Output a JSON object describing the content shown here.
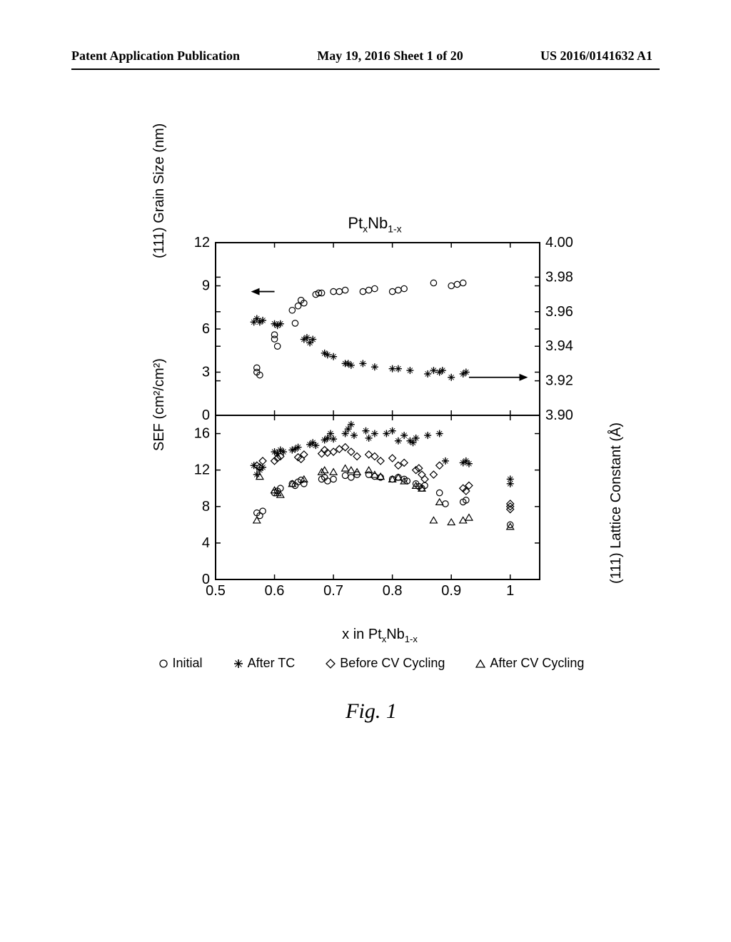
{
  "header": {
    "left": "Patent Application Publication",
    "center": "May 19, 2016  Sheet 1 of 20",
    "right": "US 2016/0141632 A1"
  },
  "figure": {
    "title_prefix": "Pt",
    "title_sub1": "x",
    "title_mid": "Nb",
    "title_sub2": "1-x",
    "caption": "Fig. 1",
    "xlabel_prefix": "x in Pt",
    "xlabel_sub1": "x",
    "xlabel_mid": "Nb",
    "xlabel_sub2": "1-x",
    "legend": {
      "initial": "Initial",
      "after_tc": "After TC",
      "before_cv": "Before CV Cycling",
      "after_cv": "After CV Cycling"
    },
    "colors": {
      "background": "#ffffff",
      "axis": "#000000",
      "marker_stroke": "#000000",
      "marker_fill": "none"
    },
    "top_panel": {
      "ylabel_left": "(111) Grain Size (nm)",
      "ylabel_right": "(111) Lattice Constant (Å)",
      "xlim": [
        0.5,
        1.05
      ],
      "ylim_left": [
        0,
        12
      ],
      "ytick_left": [
        0,
        3,
        6,
        9,
        12
      ],
      "ylim_right": [
        3.9,
        4.0
      ],
      "ytick_right": [
        "3.90",
        "3.92",
        "3.94",
        "3.96",
        "3.98",
        "4.00"
      ],
      "xtick": [
        0.5,
        0.6,
        0.7,
        0.8,
        0.9,
        1.0
      ],
      "grain_circles": [
        [
          0.57,
          3.0
        ],
        [
          0.57,
          3.3
        ],
        [
          0.575,
          2.8
        ],
        [
          0.6,
          5.3
        ],
        [
          0.6,
          5.6
        ],
        [
          0.605,
          4.8
        ],
        [
          0.63,
          7.3
        ],
        [
          0.635,
          6.4
        ],
        [
          0.64,
          7.6
        ],
        [
          0.645,
          8.0
        ],
        [
          0.65,
          7.8
        ],
        [
          0.67,
          8.4
        ],
        [
          0.675,
          8.5
        ],
        [
          0.68,
          8.5
        ],
        [
          0.7,
          8.6
        ],
        [
          0.71,
          8.6
        ],
        [
          0.72,
          8.7
        ],
        [
          0.75,
          8.6
        ],
        [
          0.76,
          8.7
        ],
        [
          0.77,
          8.8
        ],
        [
          0.8,
          8.6
        ],
        [
          0.81,
          8.7
        ],
        [
          0.82,
          8.8
        ],
        [
          0.87,
          9.2
        ],
        [
          0.9,
          9.0
        ],
        [
          0.91,
          9.1
        ],
        [
          0.92,
          9.2
        ]
      ],
      "lattice_plus": [
        [
          0.565,
          3.954
        ],
        [
          0.57,
          3.956
        ],
        [
          0.575,
          3.954
        ],
        [
          0.58,
          3.955
        ],
        [
          0.6,
          3.953
        ],
        [
          0.605,
          3.952
        ],
        [
          0.61,
          3.953
        ],
        [
          0.65,
          3.944
        ],
        [
          0.655,
          3.945
        ],
        [
          0.66,
          3.942
        ],
        [
          0.665,
          3.944
        ],
        [
          0.685,
          3.936
        ],
        [
          0.69,
          3.935
        ],
        [
          0.7,
          3.934
        ],
        [
          0.72,
          3.93
        ],
        [
          0.725,
          3.93
        ],
        [
          0.73,
          3.929
        ],
        [
          0.75,
          3.93
        ],
        [
          0.77,
          3.928
        ],
        [
          0.8,
          3.927
        ],
        [
          0.81,
          3.927
        ],
        [
          0.83,
          3.926
        ],
        [
          0.86,
          3.924
        ],
        [
          0.87,
          3.926
        ],
        [
          0.88,
          3.925
        ],
        [
          0.885,
          3.926
        ],
        [
          0.9,
          3.922
        ],
        [
          0.92,
          3.924
        ],
        [
          0.925,
          3.925
        ]
      ],
      "arrow_left_y": 8.6,
      "arrow_left_x": [
        0.6,
        0.56
      ],
      "arrow_right_y_right": 3.922,
      "arrow_right_x": [
        0.93,
        1.03
      ]
    },
    "bottom_panel": {
      "ylabel_left": "SEF (cm²/cm²)",
      "xlim": [
        0.5,
        1.05
      ],
      "ylim": [
        0,
        18
      ],
      "ytick": [
        0,
        4,
        8,
        12,
        16
      ],
      "xtick": [
        0.5,
        0.6,
        0.7,
        0.8,
        0.9,
        1.0
      ],
      "initial_circles": [
        [
          0.57,
          7.3
        ],
        [
          0.575,
          7.0
        ],
        [
          0.58,
          7.5
        ],
        [
          0.6,
          9.5
        ],
        [
          0.605,
          9.7
        ],
        [
          0.61,
          10.0
        ],
        [
          0.63,
          10.5
        ],
        [
          0.635,
          10.3
        ],
        [
          0.64,
          10.7
        ],
        [
          0.645,
          10.9
        ],
        [
          0.65,
          10.5
        ],
        [
          0.68,
          11.0
        ],
        [
          0.685,
          11.2
        ],
        [
          0.69,
          10.8
        ],
        [
          0.7,
          11.0
        ],
        [
          0.72,
          11.4
        ],
        [
          0.73,
          11.2
        ],
        [
          0.74,
          11.5
        ],
        [
          0.76,
          11.5
        ],
        [
          0.77,
          11.3
        ],
        [
          0.78,
          11.2
        ],
        [
          0.8,
          11.0
        ],
        [
          0.81,
          11.2
        ],
        [
          0.82,
          11.0
        ],
        [
          0.825,
          10.8
        ],
        [
          0.84,
          10.5
        ],
        [
          0.845,
          10.2
        ],
        [
          0.85,
          10.0
        ],
        [
          0.855,
          10.3
        ],
        [
          0.88,
          9.5
        ],
        [
          0.89,
          8.3
        ],
        [
          0.92,
          8.5
        ],
        [
          0.925,
          8.7
        ],
        [
          1.0,
          6.0
        ]
      ],
      "after_tc_plus": [
        [
          0.565,
          12.5
        ],
        [
          0.57,
          11.5
        ],
        [
          0.575,
          12.0
        ],
        [
          0.58,
          12.3
        ],
        [
          0.6,
          14.0
        ],
        [
          0.605,
          13.8
        ],
        [
          0.61,
          14.2
        ],
        [
          0.615,
          14.0
        ],
        [
          0.63,
          14.2
        ],
        [
          0.635,
          14.3
        ],
        [
          0.64,
          14.5
        ],
        [
          0.66,
          14.8
        ],
        [
          0.665,
          15.0
        ],
        [
          0.67,
          14.7
        ],
        [
          0.685,
          15.3
        ],
        [
          0.69,
          15.5
        ],
        [
          0.695,
          16.0
        ],
        [
          0.7,
          15.4
        ],
        [
          0.72,
          16.0
        ],
        [
          0.725,
          16.5
        ],
        [
          0.73,
          17.0
        ],
        [
          0.735,
          15.8
        ],
        [
          0.755,
          16.3
        ],
        [
          0.76,
          15.5
        ],
        [
          0.77,
          16.0
        ],
        [
          0.79,
          16.0
        ],
        [
          0.8,
          16.3
        ],
        [
          0.81,
          15.2
        ],
        [
          0.82,
          15.8
        ],
        [
          0.83,
          15.2
        ],
        [
          0.835,
          15.0
        ],
        [
          0.84,
          15.5
        ],
        [
          0.86,
          15.8
        ],
        [
          0.88,
          16.0
        ],
        [
          0.89,
          13.0
        ],
        [
          0.92,
          12.8
        ],
        [
          0.925,
          13.0
        ],
        [
          0.93,
          12.7
        ],
        [
          1.0,
          11.0
        ],
        [
          1.0,
          10.5
        ]
      ],
      "before_cv_diamond": [
        [
          0.57,
          12.5
        ],
        [
          0.575,
          12.3
        ],
        [
          0.58,
          13.0
        ],
        [
          0.6,
          13.0
        ],
        [
          0.605,
          13.3
        ],
        [
          0.61,
          13.5
        ],
        [
          0.64,
          13.4
        ],
        [
          0.645,
          13.2
        ],
        [
          0.65,
          13.7
        ],
        [
          0.68,
          13.8
        ],
        [
          0.685,
          14.2
        ],
        [
          0.69,
          13.9
        ],
        [
          0.7,
          14.0
        ],
        [
          0.71,
          14.3
        ],
        [
          0.72,
          14.5
        ],
        [
          0.73,
          14.0
        ],
        [
          0.74,
          13.5
        ],
        [
          0.76,
          13.7
        ],
        [
          0.77,
          13.5
        ],
        [
          0.78,
          13.0
        ],
        [
          0.8,
          13.3
        ],
        [
          0.81,
          12.5
        ],
        [
          0.82,
          12.8
        ],
        [
          0.84,
          12.0
        ],
        [
          0.845,
          12.2
        ],
        [
          0.85,
          11.5
        ],
        [
          0.855,
          11.0
        ],
        [
          0.87,
          11.5
        ],
        [
          0.88,
          12.5
        ],
        [
          0.92,
          10.0
        ],
        [
          0.925,
          9.7
        ],
        [
          0.93,
          10.3
        ],
        [
          1.0,
          8.3
        ],
        [
          1.0,
          8.0
        ],
        [
          1.0,
          7.7
        ]
      ],
      "after_cv_triangle": [
        [
          0.57,
          6.5
        ],
        [
          0.575,
          11.3
        ],
        [
          0.6,
          9.8
        ],
        [
          0.605,
          9.5
        ],
        [
          0.61,
          9.3
        ],
        [
          0.63,
          10.5
        ],
        [
          0.65,
          11.0
        ],
        [
          0.68,
          11.8
        ],
        [
          0.685,
          12.0
        ],
        [
          0.7,
          11.8
        ],
        [
          0.72,
          12.2
        ],
        [
          0.73,
          12.0
        ],
        [
          0.74,
          11.8
        ],
        [
          0.76,
          12.0
        ],
        [
          0.77,
          11.5
        ],
        [
          0.78,
          11.3
        ],
        [
          0.8,
          11.0
        ],
        [
          0.81,
          11.2
        ],
        [
          0.82,
          10.8
        ],
        [
          0.84,
          10.3
        ],
        [
          0.85,
          10.0
        ],
        [
          0.87,
          6.5
        ],
        [
          0.88,
          8.5
        ],
        [
          0.9,
          6.3
        ],
        [
          0.92,
          6.5
        ],
        [
          0.93,
          6.8
        ],
        [
          1.0,
          5.8
        ]
      ]
    }
  }
}
